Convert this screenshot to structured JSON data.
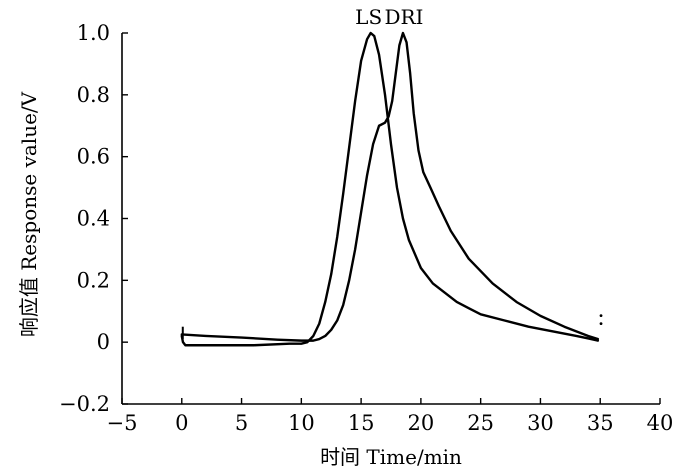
{
  "chart_data": {
    "type": "line",
    "xlabel": "时间 Time/min",
    "ylabel": "响应值 Response value/V",
    "xlim": [
      -5,
      40
    ],
    "ylim": [
      -0.2,
      1.0
    ],
    "x_ticks": [
      -5,
      0,
      5,
      10,
      15,
      20,
      25,
      30,
      35,
      40
    ],
    "x_tick_labels": [
      "−5",
      "0",
      "5",
      "10",
      "15",
      "20",
      "25",
      "30",
      "35",
      "40"
    ],
    "y_ticks": [
      -0.2,
      0,
      0.2,
      0.4,
      0.6,
      0.8,
      1.0
    ],
    "y_tick_labels": [
      "−0.2",
      "0",
      "0.2",
      "0.4",
      "0.6",
      "0.8",
      "1.0"
    ],
    "grid": false,
    "legend": "none",
    "line_color": "#000000",
    "series": [
      {
        "name": "LS",
        "x": [
          0,
          0.1,
          0.3,
          1,
          3,
          6,
          9,
          10,
          10.5,
          11,
          11.5,
          12,
          12.5,
          13,
          13.5,
          14,
          14.5,
          15,
          15.5,
          15.8,
          16.1,
          16.5,
          17,
          17.5,
          18,
          18.5,
          19,
          20,
          21,
          22,
          23,
          24,
          25,
          27,
          29,
          31,
          33,
          34,
          34.8
        ],
        "y": [
          0.02,
          0.0,
          -0.01,
          -0.01,
          -0.01,
          -0.01,
          -0.005,
          -0.005,
          0.0,
          0.02,
          0.06,
          0.13,
          0.22,
          0.34,
          0.48,
          0.63,
          0.78,
          0.91,
          0.98,
          1.0,
          0.99,
          0.93,
          0.8,
          0.64,
          0.5,
          0.4,
          0.33,
          0.24,
          0.19,
          0.16,
          0.13,
          0.11,
          0.09,
          0.07,
          0.05,
          0.035,
          0.02,
          0.012,
          0.005
        ]
      },
      {
        "name": "DRI",
        "x": [
          0,
          2,
          5,
          8,
          10,
          11,
          11.5,
          12,
          12.5,
          13,
          13.5,
          14,
          14.5,
          15,
          15.5,
          16,
          16.5,
          17,
          17.3,
          17.6,
          17.9,
          18.2,
          18.5,
          18.8,
          19.1,
          19.4,
          19.8,
          20.2,
          20.8,
          21.5,
          22.5,
          24,
          26,
          28,
          30,
          32,
          34,
          34.8
        ],
        "y": [
          0.025,
          0.02,
          0.015,
          0.008,
          0.005,
          0.005,
          0.01,
          0.02,
          0.04,
          0.07,
          0.12,
          0.2,
          0.3,
          0.42,
          0.54,
          0.64,
          0.7,
          0.71,
          0.73,
          0.78,
          0.87,
          0.96,
          1.0,
          0.97,
          0.87,
          0.74,
          0.62,
          0.55,
          0.5,
          0.44,
          0.36,
          0.27,
          0.19,
          0.13,
          0.085,
          0.05,
          0.02,
          0.01
        ]
      }
    ],
    "annotations": {
      "start_spike": {
        "x": 0,
        "y": 0.05
      },
      "end_dots": {
        "x": 34.9,
        "y": 0.06
      }
    }
  }
}
